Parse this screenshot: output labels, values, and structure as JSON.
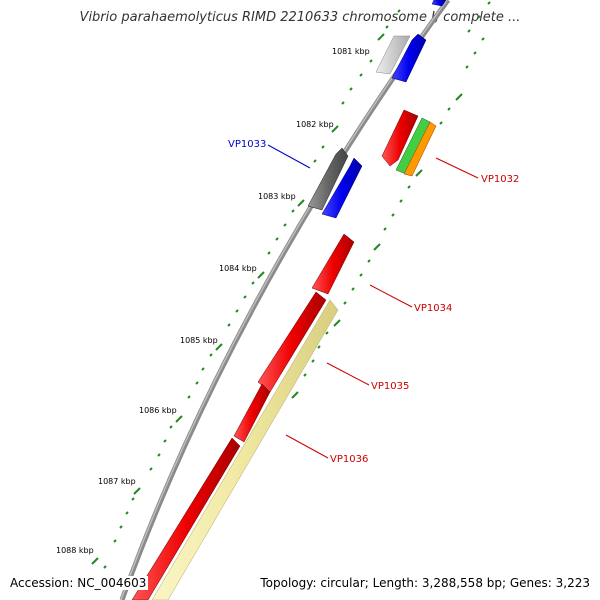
{
  "title": "Vibrio parahaemolyticus RIMD 2210633 chromosome I, complete ...",
  "footer": {
    "accession": "Accession: NC_004603",
    "stats": "Topology: circular; Length: 3,288,558 bp; Genes: 3,223"
  },
  "ruler": {
    "ticks": [
      "1081 kbp",
      "1082 kbp",
      "1083 kbp",
      "1084 kbp",
      "1085 kbp",
      "1086 kbp",
      "1087 kbp",
      "1088 kbp"
    ]
  },
  "genes": [
    {
      "label": "VP1033",
      "color": "#0000cc"
    },
    {
      "label": "VP1032",
      "color": "#cc0000"
    },
    {
      "label": "VP1034",
      "color": "#cc0000"
    },
    {
      "label": "VP1035",
      "color": "#cc0000"
    },
    {
      "label": "VP1036",
      "color": "#cc0000"
    }
  ],
  "colors": {
    "backbone": "#888888",
    "cds": "#ee0000",
    "blue_feature": "#0000ee",
    "gray_feature": "#666666",
    "light_gray_feature": "#c8c8c8",
    "pale_yellow_feature": "#f0e8a0",
    "green_feature": "#44cc44",
    "orange_feature": "#ff9900",
    "tick": "#228822"
  }
}
